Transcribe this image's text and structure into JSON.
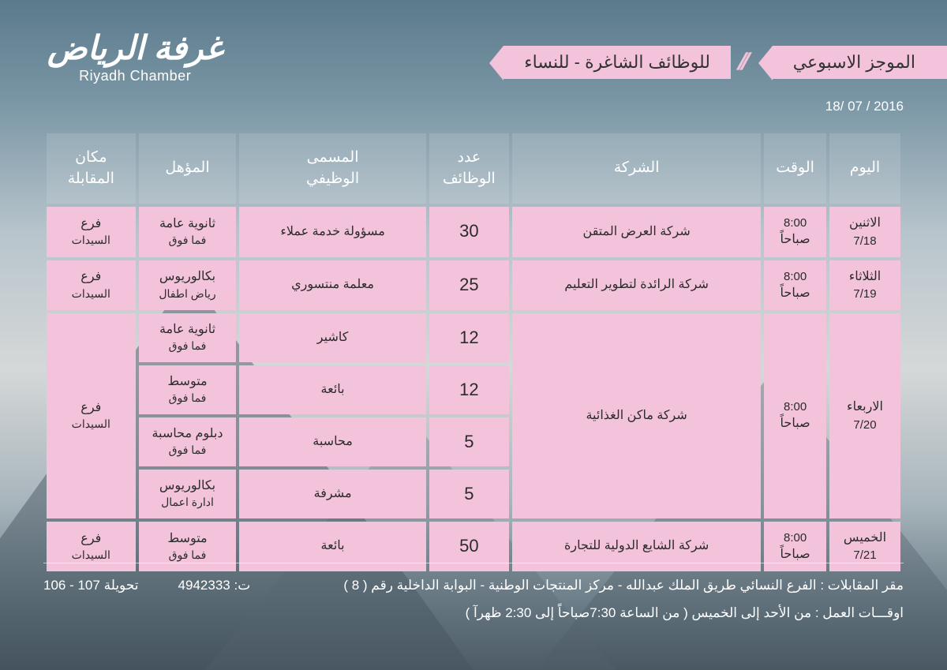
{
  "logo": {
    "ar": "غرفة الرياض",
    "en": "Riyadh Chamber"
  },
  "title1": "الموجز الاسبوعي",
  "title2": "للوظائف الشاغرة - للنساء",
  "date": "18/ 07 / 2016",
  "columns": {
    "day": "اليوم",
    "time": "الوقت",
    "company": "الشركة",
    "count": "عدد\nالوظائف",
    "job": "المسمى\nالوظيفي",
    "qual": "المؤهل",
    "loc": "مكان\nالمقابلة"
  },
  "rows": {
    "r1": {
      "day": "الاثنين",
      "daysub": "7/18",
      "time": "8:00",
      "timesub": "صباحاً",
      "company": "شركة العرض المتقن",
      "count": "30",
      "job": "مسؤولة خدمة عملاء",
      "qual": "ثانوية عامة",
      "qualsub": "فما فوق",
      "loc": "فرع",
      "locsub": "السيدات"
    },
    "r2": {
      "day": "الثلاثاء",
      "daysub": "7/19",
      "time": "8:00",
      "timesub": "صباحاً",
      "company": "شركة الرائدة لتطوير التعليم",
      "count": "25",
      "job": "معلمة منتسوري",
      "qual": "بكالوريوس",
      "qualsub": "رياض اطفال",
      "loc": "فرع",
      "locsub": "السيدات"
    },
    "r3": {
      "day": "الاربعاء",
      "daysub": "7/20",
      "time": "8:00",
      "timesub": "صباحاً",
      "company": "شركة ماكن  الغذائية",
      "loc": "فرع",
      "locsub": "السيدات",
      "a": {
        "count": "12",
        "job": "كاشير",
        "qual": "ثانوية عامة",
        "qualsub": "فما فوق"
      },
      "b": {
        "count": "12",
        "job": "بائعة",
        "qual": "متوسط",
        "qualsub": "فما فوق"
      },
      "c": {
        "count": "5",
        "job": "محاسبة",
        "qual": "دبلوم محاسبة",
        "qualsub": "فما فوق"
      },
      "d": {
        "count": "5",
        "job": "مشرفة",
        "qual": "بكالوريوس",
        "qualsub": "ادارة اعمال"
      }
    },
    "r4": {
      "day": "الخميس",
      "daysub": "7/21",
      "time": "8:00",
      "timesub": "صباحاً",
      "company": "شركة الشايع الدولية للتجارة",
      "count": "50",
      "job": "بائعة",
      "qual": "متوسط",
      "qualsub": "فما فوق",
      "loc": "فرع",
      "locsub": "السيدات"
    }
  },
  "footer": {
    "addr": "مقر المقابلات : الفرع النسائي طريق الملك عبدالله - مركز المنتجات الوطنية - البوابة الداخلية رقم ( 8 )",
    "tel_label": "ت:",
    "tel": "4942333",
    "ext_label": "تحويلة",
    "ext": "106 - 107",
    "hours": "اوقـــات العمل : من الأحد إلى الخميس ( من الساعة 7:30صباحاً إلى 2:30 ظهرآ )"
  },
  "colors": {
    "ribbon": "#f2c3db",
    "cell": "#f2c3db",
    "header_bg": "rgba(255,255,255,0.12)"
  }
}
